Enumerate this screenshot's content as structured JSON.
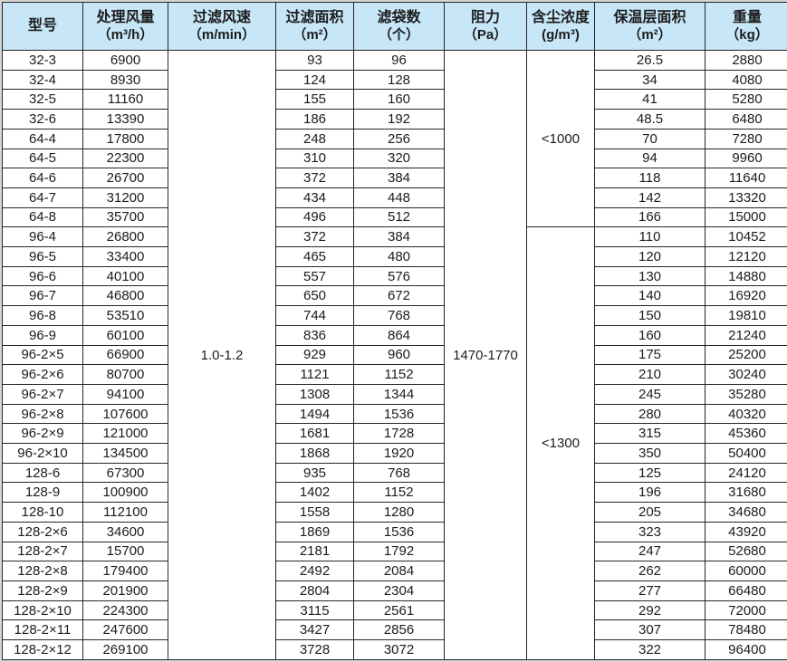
{
  "table": {
    "columns": [
      {
        "title": "型号",
        "unit": ""
      },
      {
        "title": "处理风量",
        "unit": "（m³/h）"
      },
      {
        "title": "过滤风速",
        "unit": "（m/min）"
      },
      {
        "title": "过滤面积",
        "unit": "（m²）"
      },
      {
        "title": "滤袋数",
        "unit": "（个）"
      },
      {
        "title": "阻力",
        "unit": "（Pa）"
      },
      {
        "title": "含尘浓度",
        "unit": "(g/m³)"
      },
      {
        "title": "保温层面积",
        "unit": "（m²）"
      },
      {
        "title": "重量",
        "unit": "（kg）"
      }
    ],
    "filter_speed": "1.0-1.2",
    "resistance": "1470-1770",
    "dust_sections": [
      {
        "value": "<1000",
        "rows": 9
      },
      {
        "value": "<1300",
        "rows": 22
      }
    ],
    "rows": [
      [
        "32-3",
        "6900",
        "93",
        "96",
        "26.5",
        "2880"
      ],
      [
        "32-4",
        "8930",
        "124",
        "128",
        "34",
        "4080"
      ],
      [
        "32-5",
        "11160",
        "155",
        "160",
        "41",
        "5280"
      ],
      [
        "32-6",
        "13390",
        "186",
        "192",
        "48.5",
        "6480"
      ],
      [
        "64-4",
        "17800",
        "248",
        "256",
        "70",
        "7280"
      ],
      [
        "64-5",
        "22300",
        "310",
        "320",
        "94",
        "9960"
      ],
      [
        "64-6",
        "26700",
        "372",
        "384",
        "118",
        "11640"
      ],
      [
        "64-7",
        "31200",
        "434",
        "448",
        "142",
        "13320"
      ],
      [
        "64-8",
        "35700",
        "496",
        "512",
        "166",
        "15000"
      ],
      [
        "96-4",
        "26800",
        "372",
        "384",
        "110",
        "10452"
      ],
      [
        "96-5",
        "33400",
        "465",
        "480",
        "120",
        "12120"
      ],
      [
        "96-6",
        "40100",
        "557",
        "576",
        "130",
        "14880"
      ],
      [
        "96-7",
        "46800",
        "650",
        "672",
        "140",
        "16920"
      ],
      [
        "96-8",
        "53510",
        "744",
        "768",
        "150",
        "19810"
      ],
      [
        "96-9",
        "60100",
        "836",
        "864",
        "160",
        "21240"
      ],
      [
        "96-2×5",
        "66900",
        "929",
        "960",
        "175",
        "25200"
      ],
      [
        "96-2×6",
        "80700",
        "1121",
        "1152",
        "210",
        "30240"
      ],
      [
        "96-2×7",
        "94100",
        "1308",
        "1344",
        "245",
        "35280"
      ],
      [
        "96-2×8",
        "107600",
        "1494",
        "1536",
        "280",
        "40320"
      ],
      [
        "96-2×9",
        "121000",
        "1681",
        "1728",
        "315",
        "45360"
      ],
      [
        "96-2×10",
        "134500",
        "1868",
        "1920",
        "350",
        "50400"
      ],
      [
        "128-6",
        "67300",
        "935",
        "768",
        "125",
        "24120"
      ],
      [
        "128-9",
        "100900",
        "1402",
        "1152",
        "196",
        "31680"
      ],
      [
        "128-10",
        "112100",
        "1558",
        "1280",
        "205",
        "34680"
      ],
      [
        "128-2×6",
        "34600",
        "1869",
        "1536",
        "323",
        "43920"
      ],
      [
        "128-2×7",
        "15700",
        "2181",
        "1792",
        "247",
        "52680"
      ],
      [
        "128-2×8",
        "179400",
        "2492",
        "2084",
        "262",
        "60000"
      ],
      [
        "128-2×9",
        "201900",
        "2804",
        "2304",
        "277",
        "66480"
      ],
      [
        "128-2×10",
        "224300",
        "3115",
        "2561",
        "292",
        "72000"
      ],
      [
        "128-2×11",
        "247600",
        "3427",
        "2856",
        "307",
        "78480"
      ],
      [
        "128-2×12",
        "269100",
        "3728",
        "3072",
        "322",
        "96400"
      ]
    ]
  },
  "colors": {
    "header_bg": "#c7e6f7",
    "grid": "#262626",
    "frame": "#d6d6d6",
    "text": "#1c1c1c"
  }
}
